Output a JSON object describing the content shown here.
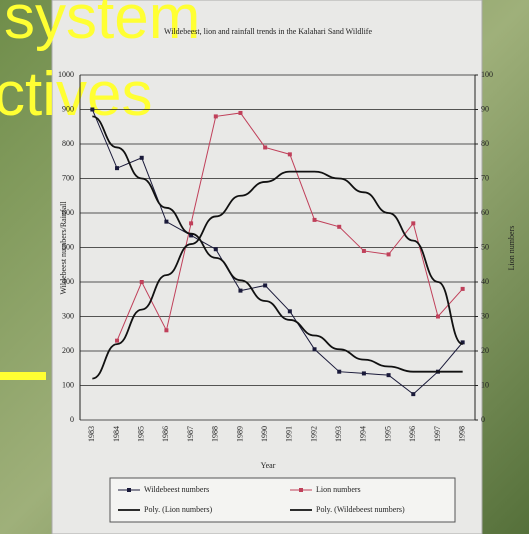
{
  "slide": {
    "title_line_1": "system",
    "title_line_2": "ctives"
  },
  "chart_data": {
    "type": "line",
    "title": "Wildebeest, lion and rainfall trends in the Kalahari Sand Wildlife",
    "x_label": "Year",
    "y_label": "Wildebeest numbers/Rainfall",
    "y2_label": "Lion numbers",
    "categories": [
      "1983",
      "1984",
      "1985",
      "1986",
      "1987",
      "1988",
      "1989",
      "1990",
      "1991",
      "1992",
      "1993",
      "1994",
      "1995",
      "1996",
      "1997",
      "1998"
    ],
    "ylim": [
      0,
      1000
    ],
    "yticks": [
      0,
      100,
      200,
      300,
      400,
      500,
      600,
      700,
      800,
      900,
      1000
    ],
    "y2lim": [
      0,
      100
    ],
    "y2ticks": [
      0,
      10,
      20,
      30,
      40,
      50,
      60,
      70,
      80,
      90,
      100
    ],
    "grid": true,
    "series": [
      {
        "name": "Wildebeest numbers",
        "color": "#1a1a3a",
        "marker": true,
        "values": [
          900,
          730,
          760,
          575,
          535,
          495,
          375,
          390,
          315,
          205,
          140,
          135,
          130,
          75,
          140,
          225
        ]
      },
      {
        "name": "Lion numbers",
        "color": "#c0405a",
        "marker": true,
        "axis": "y2",
        "values": [
          null,
          23,
          40,
          26,
          57,
          88,
          89,
          79,
          77,
          58,
          56,
          49,
          48,
          57,
          30,
          38
        ]
      },
      {
        "name": "Poly. (Lion numbers)",
        "color": "#111111",
        "marker": false,
        "axis": "y2",
        "values": [
          12,
          22,
          32,
          42,
          51,
          59,
          65,
          69,
          72,
          72,
          70,
          66,
          60,
          52,
          40,
          22
        ]
      },
      {
        "name": "Poly. (Wildebeest numbers)",
        "color": "#111111",
        "marker": false,
        "values": [
          880,
          790,
          700,
          615,
          540,
          470,
          405,
          345,
          290,
          245,
          205,
          175,
          155,
          140,
          140,
          140
        ]
      }
    ]
  }
}
